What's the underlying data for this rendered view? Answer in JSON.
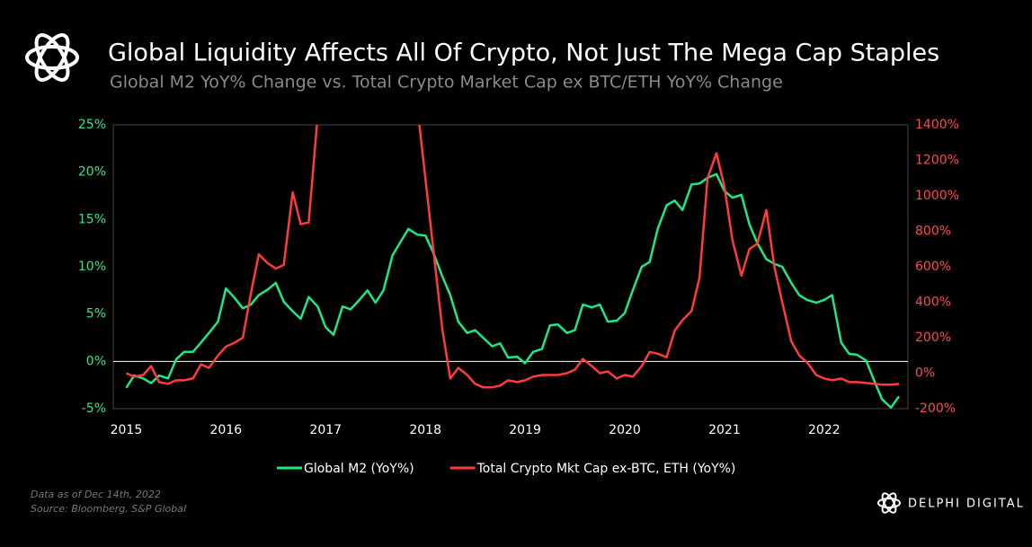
{
  "chart_data": {
    "type": "line",
    "title": "Global Liquidity Affects All Of Crypto, Not Just The Mega Cap Staples",
    "subtitle": "Global M2 YoY% Change vs. Total Crypto Market Cap ex BTC/ETH YoY% Change",
    "x": [
      2015,
      2015.08,
      2015.17,
      2015.25,
      2015.33,
      2015.42,
      2015.5,
      2015.58,
      2015.67,
      2015.75,
      2015.83,
      2015.92,
      2016,
      2016.08,
      2016.17,
      2016.25,
      2016.33,
      2016.42,
      2016.5,
      2016.58,
      2016.67,
      2016.75,
      2016.83,
      2016.92,
      2017,
      2017.08,
      2017.17,
      2017.25,
      2017.33,
      2017.42,
      2017.5,
      2017.58,
      2017.67,
      2017.75,
      2017.83,
      2017.92,
      2018,
      2018.08,
      2018.17,
      2018.25,
      2018.33,
      2018.42,
      2018.5,
      2018.58,
      2018.67,
      2018.75,
      2018.83,
      2018.92,
      2019,
      2019.08,
      2019.17,
      2019.25,
      2019.33,
      2019.42,
      2019.5,
      2019.58,
      2019.67,
      2019.75,
      2019.83,
      2019.92,
      2020,
      2020.08,
      2020.17,
      2020.25,
      2020.33,
      2020.42,
      2020.5,
      2020.58,
      2020.67,
      2020.75,
      2020.83,
      2020.92,
      2021,
      2021.08,
      2021.17,
      2021.25,
      2021.33,
      2021.42,
      2021.5,
      2021.58,
      2021.67,
      2021.75,
      2021.83,
      2021.92,
      2022,
      2022.08,
      2022.17,
      2022.25,
      2022.33,
      2022.42,
      2022.5,
      2022.58,
      2022.67,
      2022.75
    ],
    "series": [
      {
        "name": "Global M2 (YoY%)",
        "color": "#1ee882",
        "values": [
          -2.8,
          -1.5,
          -1.8,
          -2.3,
          -1.5,
          -1.8,
          0.2,
          1.0,
          1.0,
          2.0,
          3.0,
          4.2,
          7.7,
          6.8,
          5.6,
          6.0,
          7.0,
          7.6,
          8.3,
          6.3,
          5.3,
          4.5,
          6.8,
          5.8,
          3.6,
          2.8,
          5.8,
          5.5,
          6.4,
          7.5,
          6.2,
          7.5,
          11.2,
          12.6,
          14.0,
          13.4,
          13.3,
          11.5,
          9.0,
          7.0,
          4.2,
          3.0,
          3.3,
          2.5,
          1.6,
          1.9,
          0.4,
          0.5,
          -0.2,
          1.0,
          1.3,
          3.8,
          3.9,
          3.0,
          3.3,
          6.0,
          5.7,
          6.0,
          4.2,
          4.3,
          5.1,
          7.5,
          10.0,
          10.5,
          14.0,
          16.5,
          17.0,
          16.0,
          18.7,
          18.8,
          19.4,
          19.8,
          18.0,
          17.3,
          17.6,
          14.5,
          12.5,
          10.8,
          10.3,
          10.0,
          8.3,
          7.0,
          6.5,
          6.2,
          6.5,
          7.0,
          2.0,
          0.8,
          0.7,
          0.1,
          -2.0,
          -4.0,
          -4.9,
          -3.7
        ]
      },
      {
        "name": "Total Crypto Mkt Cap ex-BTC, ETH (YoY%)",
        "color": "#ff3b3b",
        "axis": "y2",
        "values": [
          0,
          -20,
          -10,
          40,
          -50,
          -60,
          -40,
          -40,
          -30,
          50,
          30,
          100,
          150,
          170,
          200,
          450,
          670,
          620,
          590,
          610,
          1020,
          840,
          850,
          1450,
          null,
          null,
          null,
          null,
          null,
          null,
          null,
          null,
          null,
          null,
          null,
          1500,
          1100,
          700,
          250,
          -30,
          30,
          -10,
          -60,
          -80,
          -80,
          -70,
          -40,
          -50,
          -40,
          -20,
          -10,
          -10,
          -10,
          0,
          20,
          80,
          40,
          0,
          10,
          -30,
          -10,
          -20,
          40,
          120,
          110,
          90,
          240,
          300,
          350,
          540,
          1100,
          1240,
          1050,
          750,
          550,
          700,
          730,
          920,
          600,
          400,
          180,
          100,
          60,
          -10,
          -30,
          -40,
          -30,
          -50,
          -50,
          -55,
          -60,
          -65,
          -65,
          -60
        ]
      }
    ],
    "xlim": [
      2014.87,
      2022.84
    ],
    "xticks": [
      2015,
      2016,
      2017,
      2018,
      2019,
      2020,
      2021,
      2022
    ],
    "ylim": [
      -5,
      25
    ],
    "yticks": [
      {
        "value": -5,
        "label": "-5%"
      },
      {
        "value": 0,
        "label": "0%"
      },
      {
        "value": 5,
        "label": "5%"
      },
      {
        "value": 10,
        "label": "10%"
      },
      {
        "value": 15,
        "label": "15%"
      },
      {
        "value": 20,
        "label": "20%"
      },
      {
        "value": 25,
        "label": "25%"
      }
    ],
    "y2lim": [
      -200,
      1400
    ],
    "y2ticks": [
      {
        "value": -200,
        "label": "-200%"
      },
      {
        "value": 0,
        "label": "0%"
      },
      {
        "value": 200,
        "label": "200%"
      },
      {
        "value": 400,
        "label": "400%"
      },
      {
        "value": 600,
        "label": "600%"
      },
      {
        "value": 800,
        "label": "800%"
      },
      {
        "value": 1000,
        "label": "1000%"
      },
      {
        "value": 1200,
        "label": "1200%"
      },
      {
        "value": 1400,
        "label": "1400%"
      }
    ],
    "ytick_color": "#2ee88a",
    "y2tick_color": "#ff4a4a",
    "notes": [
      "Data as of Dec 14th, 2022",
      "Source: Bloomberg, S&P Global"
    ],
    "brand": "DELPHI DIGITAL"
  }
}
